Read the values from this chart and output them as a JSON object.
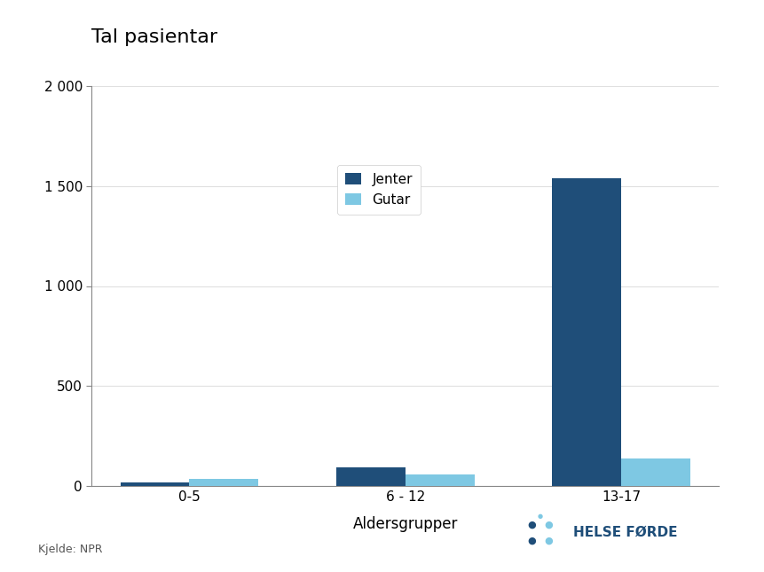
{
  "title": "Tal pasientar",
  "xlabel": "Aldersgrupper",
  "categories": [
    "0-5",
    "6 - 12",
    "13-17"
  ],
  "jenter_values": [
    20,
    95,
    1540
  ],
  "gutar_values": [
    35,
    60,
    140
  ],
  "jenter_color": "#1F4E79",
  "gutar_color": "#7EC8E3",
  "legend_labels": [
    "Jenter",
    "Gutar"
  ],
  "ylim": [
    0,
    2000
  ],
  "yticks": [
    0,
    500,
    1000,
    1500,
    2000
  ],
  "ytick_labels": [
    "0",
    "500",
    "1 000",
    "1 500",
    "2 000"
  ],
  "background_color": "#ffffff",
  "bar_width": 0.32,
  "source_text": "Kjelde: NPR",
  "helse_forde_text": "HELSE FØRDE",
  "title_fontsize": 16,
  "axis_label_fontsize": 12,
  "tick_fontsize": 11,
  "legend_fontsize": 11,
  "dot_colors": [
    "#1F4E79",
    "#7EC8E3",
    "#1F4E79",
    "#7EC8E3",
    "#7EC8E3",
    "#1F4E79"
  ]
}
